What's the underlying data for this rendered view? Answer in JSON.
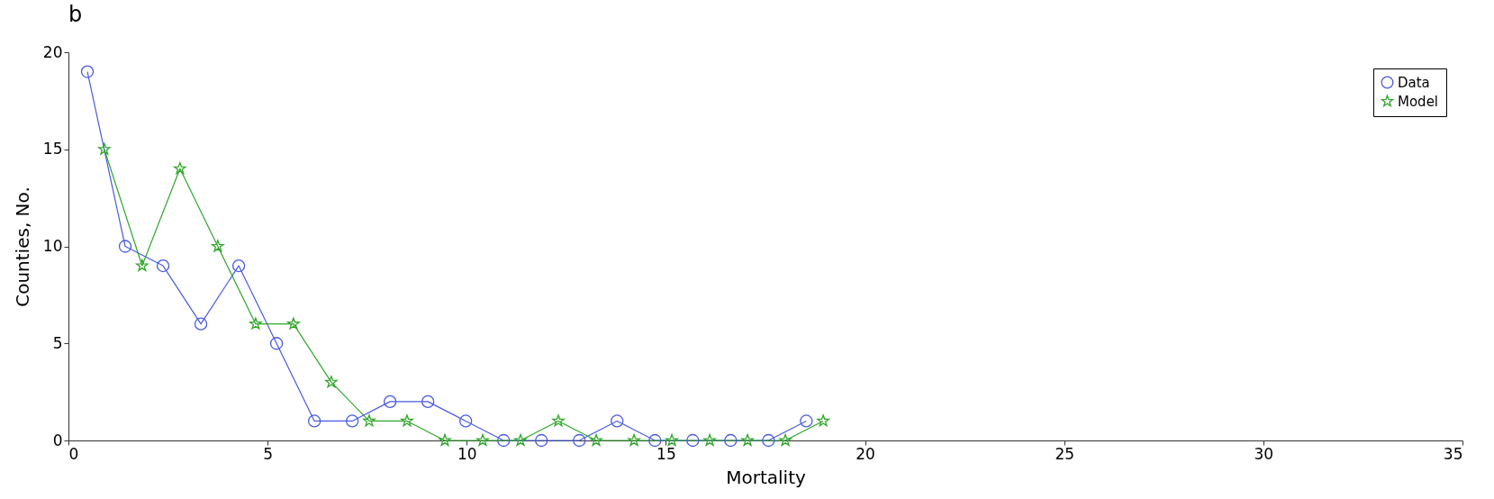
{
  "chart_data": {
    "type": "line",
    "title": "b",
    "xlabel": "Mortality",
    "ylabel": "Counties, No.",
    "xlim": [
      0,
      35
    ],
    "xticks": [
      0,
      5,
      10,
      15,
      20,
      25,
      30,
      35
    ],
    "ylim": [
      0,
      20
    ],
    "yticks": [
      0,
      5,
      10,
      15,
      20
    ],
    "grid": false,
    "legend": "top right",
    "series": [
      {
        "name": "Data",
        "color": "#4a5ae0",
        "marker": "circle",
        "x": [
          0.475,
          1.425,
          2.375,
          3.325,
          4.275,
          5.225,
          6.175,
          7.125,
          8.075,
          9.025,
          9.975,
          10.925,
          11.875,
          12.825,
          13.775,
          14.725,
          15.675,
          16.625,
          17.575,
          18.525
        ],
        "values": [
          19,
          10,
          9,
          6,
          9,
          5,
          1,
          1,
          2,
          2,
          1,
          0,
          0,
          0,
          1,
          0,
          0,
          0,
          0,
          1
        ]
      },
      {
        "name": "Model",
        "color": "#2ea62a",
        "marker": "star",
        "x": [
          0.9,
          1.85,
          2.8,
          3.75,
          4.7,
          5.65,
          6.6,
          7.55,
          8.5,
          9.45,
          10.4,
          11.35,
          12.3,
          13.25,
          14.2,
          15.15,
          16.1,
          17.05,
          18.0,
          18.95
        ],
        "values": [
          15,
          9,
          14,
          10,
          6,
          6,
          3,
          1,
          1,
          0,
          0,
          0,
          1,
          0,
          0,
          0,
          0,
          0,
          0,
          1
        ]
      }
    ]
  }
}
